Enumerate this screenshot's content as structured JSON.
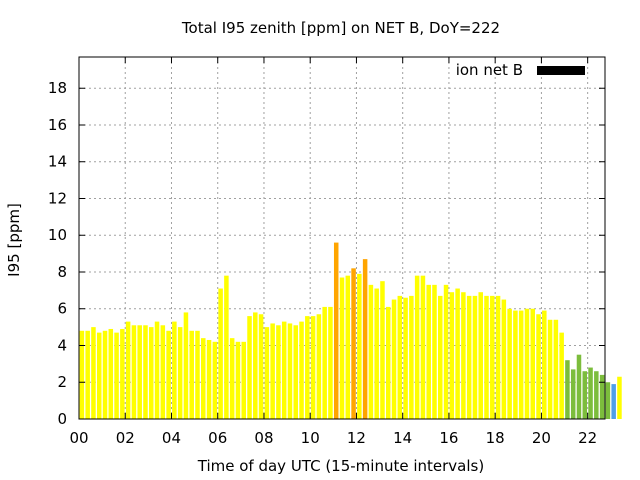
{
  "chart_data": {
    "type": "bar",
    "title": "Total I95 zenith [ppm] on NET B, DoY=222",
    "xlabel": "Time of day UTC (15-minute intervals)",
    "ylabel": "I95 [ppm]",
    "xlim": [
      0,
      22.75
    ],
    "ylim": [
      0,
      19.7
    ],
    "x_ticks": [
      "00",
      "02",
      "04",
      "06",
      "08",
      "10",
      "12",
      "14",
      "16",
      "18",
      "20",
      "22"
    ],
    "y_ticks": [
      "0",
      "2",
      "4",
      "6",
      "8",
      "10",
      "12",
      "14",
      "16",
      "18"
    ],
    "grid": true,
    "legend": {
      "label": "ion net B",
      "color": "#000000",
      "position": "top-right"
    },
    "bar_interval_hours": 0.25,
    "series": [
      {
        "values": [
          4.8,
          4.8,
          5.0,
          4.7,
          4.8,
          4.9,
          4.7,
          4.9,
          5.3,
          5.1,
          5.1,
          5.1,
          5.0,
          5.3,
          5.1,
          4.8,
          5.3,
          5.0,
          5.8,
          4.8,
          4.8,
          4.4,
          4.3,
          4.2,
          7.1,
          7.8,
          4.4,
          4.2,
          4.2,
          5.6,
          5.8,
          5.7,
          5.0,
          5.2,
          5.1,
          5.3,
          5.2,
          5.1,
          5.3,
          5.6,
          5.6,
          5.7,
          6.1,
          6.1,
          9.6,
          7.7,
          7.8,
          8.2,
          7.9,
          8.7,
          7.3,
          7.1,
          7.5,
          6.1,
          6.5,
          6.7,
          6.6,
          6.7,
          7.8,
          7.8,
          7.3,
          7.3,
          6.7,
          7.3,
          6.9,
          7.1,
          6.9,
          6.7,
          6.7,
          6.9,
          6.7,
          6.7,
          6.7,
          6.5,
          6.0,
          5.9,
          5.9,
          6.0,
          6.0,
          5.7,
          5.9,
          5.4,
          5.4,
          4.7,
          3.2,
          2.7,
          3.5,
          2.6,
          2.8,
          2.6,
          2.4,
          2.0,
          1.9,
          2.3
        ],
        "colors": [
          "#ffff00",
          "#ffff00",
          "#ffff00",
          "#ffff00",
          "#ffff00",
          "#ffff00",
          "#ffff00",
          "#ffff00",
          "#ffff00",
          "#ffff00",
          "#ffff00",
          "#ffff00",
          "#ffff00",
          "#ffff00",
          "#ffff00",
          "#ffff00",
          "#ffff00",
          "#ffff00",
          "#ffff00",
          "#ffff00",
          "#ffff00",
          "#ffff00",
          "#ffff00",
          "#ffff00",
          "#ffff00",
          "#ffff00",
          "#ffff00",
          "#ffff00",
          "#ffff00",
          "#ffff00",
          "#ffff00",
          "#ffff00",
          "#ffff00",
          "#ffff00",
          "#ffff00",
          "#ffff00",
          "#ffff00",
          "#ffff00",
          "#ffff00",
          "#ffff00",
          "#ffff00",
          "#ffff00",
          "#ffff00",
          "#ffff00",
          "#ffa500",
          "#ffff00",
          "#ffff00",
          "#ffa500",
          "#ffff00",
          "#ffa500",
          "#ffff00",
          "#ffff00",
          "#ffff00",
          "#ffff00",
          "#ffff00",
          "#ffff00",
          "#ffff00",
          "#ffff00",
          "#ffff00",
          "#ffff00",
          "#ffff00",
          "#ffff00",
          "#ffff00",
          "#ffff00",
          "#ffff00",
          "#ffff00",
          "#ffff00",
          "#ffff00",
          "#ffff00",
          "#ffff00",
          "#ffff00",
          "#ffff00",
          "#ffff00",
          "#ffff00",
          "#ffff00",
          "#ffff00",
          "#ffff00",
          "#ffff00",
          "#ffff00",
          "#ffff00",
          "#ffff00",
          "#ffff00",
          "#ffff00",
          "#ffff00",
          "#7cbd3c",
          "#7cbd3c",
          "#7cbd3c",
          "#7cbd3c",
          "#7cbd3c",
          "#7cbd3c",
          "#7cbd3c",
          "#7cbd3c",
          "#4f9fe8",
          "#ffff00"
        ]
      }
    ]
  }
}
